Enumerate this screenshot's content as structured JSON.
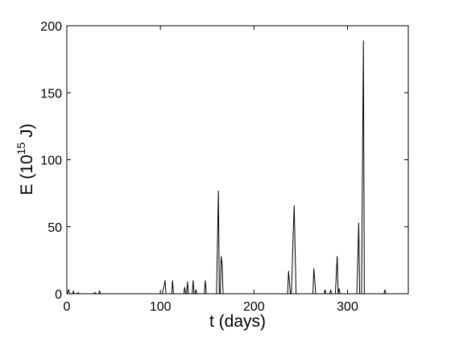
{
  "chart_data": {
    "type": "line",
    "x_label": "t (days)",
    "y_label": {
      "base": "E (10",
      "exponent": "15",
      "unit": " J)"
    },
    "x": [
      0,
      2,
      3,
      6,
      7,
      8,
      11,
      12,
      13,
      29,
      30,
      31,
      34,
      35,
      36,
      102,
      103,
      104,
      105,
      106,
      112,
      113,
      114,
      125,
      126,
      127,
      128,
      129,
      130,
      134,
      135,
      136,
      137,
      138,
      139,
      147,
      148,
      149,
      160,
      161,
      162,
      163,
      164,
      165,
      166,
      167,
      236,
      237,
      238,
      239,
      240,
      241,
      242,
      243,
      244,
      245,
      263,
      264,
      265,
      266,
      275,
      276,
      277,
      281,
      282,
      283,
      287,
      288,
      289,
      290,
      291,
      292,
      310,
      311,
      312,
      313,
      315,
      316,
      317,
      318,
      339,
      340,
      341,
      365
    ],
    "values": [
      0,
      3,
      0,
      0,
      2,
      0,
      0,
      1,
      0,
      0,
      1,
      0,
      0,
      2,
      0,
      0,
      3,
      6,
      10,
      0,
      0,
      10,
      0,
      0,
      5,
      0,
      0,
      9,
      0,
      0,
      10,
      0,
      0,
      3,
      0,
      0,
      10,
      0,
      0,
      38,
      77,
      0,
      0,
      28,
      22,
      0,
      0,
      17,
      8,
      0,
      0,
      22,
      46,
      66,
      33,
      0,
      0,
      19,
      10,
      0,
      0,
      3,
      0,
      0,
      3,
      0,
      0,
      14,
      28,
      0,
      4,
      0,
      0,
      26,
      53,
      0,
      0,
      94,
      189,
      0,
      0,
      3,
      0,
      0
    ],
    "color": "#000000",
    "xlim": [
      0,
      365
    ],
    "xticks": [
      0,
      100,
      200,
      300
    ],
    "ylim": [
      0,
      200
    ],
    "yticks": [
      0,
      50,
      100,
      150,
      200
    ],
    "grid": false
  }
}
